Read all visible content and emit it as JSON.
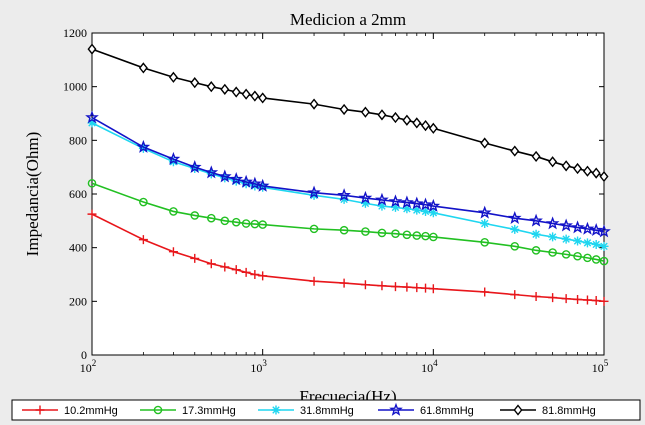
{
  "chart_data": {
    "type": "line",
    "title": "Medicion a 2mm",
    "xlabel": "Frecuecia(Hz)",
    "ylabel": "Impedancia(Ohm)",
    "xscale": "log",
    "xlim": [
      100,
      100000
    ],
    "ylim": [
      0,
      1200
    ],
    "yticks": [
      0,
      200,
      400,
      600,
      800,
      1000,
      1200
    ],
    "xticks": [
      {
        "base": "10",
        "exp": "2"
      },
      {
        "base": "10",
        "exp": "3"
      },
      {
        "base": "10",
        "exp": "4"
      },
      {
        "base": "10",
        "exp": "5"
      }
    ],
    "grid": false,
    "legend_position": "bottom",
    "x": [
      100,
      200,
      300,
      400,
      500,
      600,
      700,
      800,
      900,
      1000,
      2000,
      3000,
      4000,
      5000,
      6000,
      7000,
      8000,
      9000,
      10000,
      20000,
      30000,
      40000,
      50000,
      60000,
      70000,
      80000,
      90000,
      100000
    ],
    "series": [
      {
        "name": "10.2mmHg",
        "color": "#e8161b",
        "marker": "plus",
        "values": [
          525,
          430,
          385,
          360,
          340,
          328,
          318,
          308,
          300,
          295,
          275,
          268,
          262,
          258,
          255,
          253,
          251,
          249,
          247,
          235,
          225,
          218,
          214,
          210,
          207,
          205,
          203,
          200
        ]
      },
      {
        "name": "17.3mmHg",
        "color": "#22c022",
        "marker": "circle",
        "values": [
          640,
          570,
          535,
          520,
          510,
          500,
          495,
          490,
          488,
          486,
          470,
          465,
          460,
          455,
          452,
          448,
          445,
          443,
          440,
          420,
          405,
          390,
          382,
          375,
          368,
          362,
          356,
          350
        ]
      },
      {
        "name": "31.8mmHg",
        "color": "#1fd6f0",
        "marker": "asterisk",
        "values": [
          865,
          770,
          720,
          695,
          675,
          660,
          648,
          638,
          630,
          625,
          595,
          580,
          565,
          555,
          550,
          545,
          540,
          535,
          530,
          490,
          468,
          450,
          440,
          432,
          425,
          418,
          412,
          405
        ]
      },
      {
        "name": "61.8mmHg",
        "color": "#1313c8",
        "marker": "star",
        "values": [
          885,
          775,
          730,
          700,
          680,
          665,
          655,
          645,
          638,
          630,
          605,
          595,
          585,
          578,
          572,
          568,
          564,
          560,
          555,
          530,
          510,
          500,
          490,
          482,
          475,
          470,
          465,
          460
        ]
      },
      {
        "name": "81.8mmHg",
        "color": "#000000",
        "marker": "diamond",
        "values": [
          1140,
          1070,
          1035,
          1015,
          1000,
          990,
          980,
          972,
          965,
          958,
          935,
          915,
          905,
          895,
          885,
          875,
          865,
          855,
          845,
          790,
          760,
          740,
          720,
          705,
          695,
          685,
          678,
          665
        ]
      }
    ]
  }
}
